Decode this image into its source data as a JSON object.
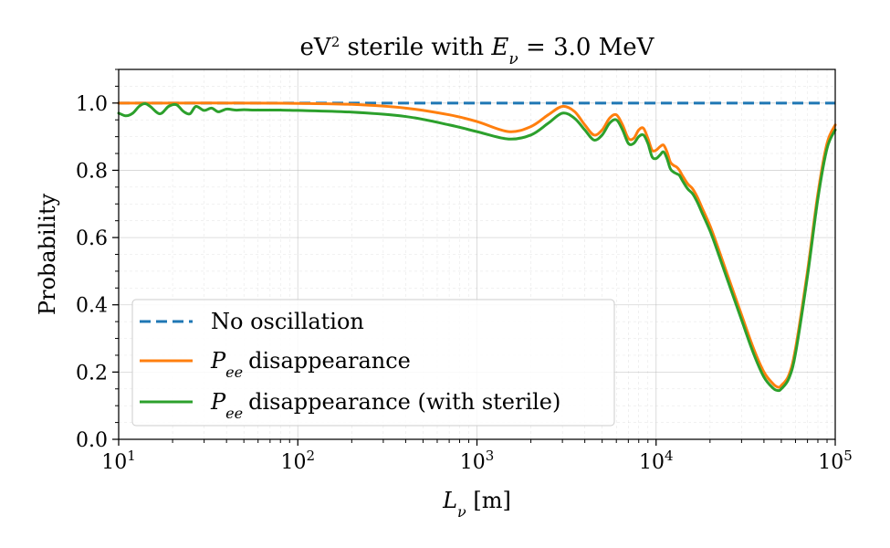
{
  "chart_data": {
    "type": "line",
    "title": {
      "prefix": "eV",
      "sup": "2",
      "middle": " sterile with ",
      "var": "E",
      "var_sub": "ν",
      "suffix": " = 3.0 MeV"
    },
    "xlabel": {
      "var": "L",
      "var_sub": "ν",
      "suffix": " [m]"
    },
    "ylabel": "Probability",
    "x_scale": "log",
    "xlim": [
      10,
      100000
    ],
    "ylim": [
      0.0,
      1.1
    ],
    "x_ticks": [
      {
        "value": 10,
        "base": "10",
        "exp": "1"
      },
      {
        "value": 100,
        "base": "10",
        "exp": "2"
      },
      {
        "value": 1000,
        "base": "10",
        "exp": "3"
      },
      {
        "value": 10000,
        "base": "10",
        "exp": "4"
      },
      {
        "value": 100000,
        "base": "10",
        "exp": "5"
      }
    ],
    "y_ticks": [
      {
        "value": 0.0,
        "label": "0.0"
      },
      {
        "value": 0.2,
        "label": "0.2"
      },
      {
        "value": 0.4,
        "label": "0.4"
      },
      {
        "value": 0.6,
        "label": "0.6"
      },
      {
        "value": 0.8,
        "label": "0.8"
      },
      {
        "value": 1.0,
        "label": "1.0"
      }
    ],
    "grid": true,
    "legend_position": "lower-left",
    "series": [
      {
        "name": "No oscillation",
        "color": "#1f77b4",
        "style": "dashed",
        "x": [
          10,
          100000
        ],
        "y": [
          1.0,
          1.0
        ]
      },
      {
        "name": "disappearance",
        "name_var": "P",
        "name_sub": "ee",
        "color": "#ff7f0e",
        "style": "solid",
        "x": [
          10,
          20,
          50,
          100,
          200,
          400,
          700,
          1000,
          1500,
          2000,
          2500,
          3000,
          3500,
          4000,
          4500,
          5000,
          5500,
          6000,
          6500,
          7000,
          7500,
          8000,
          8500,
          9000,
          9500,
          10000,
          10500,
          11000,
          11500,
          12000,
          12500,
          13000,
          13500,
          14000,
          15000,
          16000,
          17000,
          18000,
          20000,
          22000,
          25000,
          30000,
          35000,
          40000,
          45000,
          48000,
          50000,
          55000,
          60000,
          70000,
          80000,
          90000,
          100000
        ],
        "y": [
          1.0,
          1.0,
          1.0,
          0.999,
          0.996,
          0.985,
          0.965,
          0.945,
          0.915,
          0.93,
          0.965,
          0.99,
          0.975,
          0.935,
          0.905,
          0.92,
          0.955,
          0.965,
          0.935,
          0.895,
          0.895,
          0.92,
          0.925,
          0.895,
          0.86,
          0.86,
          0.87,
          0.875,
          0.855,
          0.825,
          0.815,
          0.81,
          0.8,
          0.785,
          0.76,
          0.745,
          0.72,
          0.69,
          0.635,
          0.575,
          0.49,
          0.37,
          0.27,
          0.2,
          0.165,
          0.155,
          0.16,
          0.19,
          0.27,
          0.5,
          0.73,
          0.88,
          0.935
        ]
      },
      {
        "name": "disappearance (with sterile)",
        "name_var": "P",
        "name_sub": "ee",
        "color": "#2ca02c",
        "style": "solid",
        "x": [
          10,
          11,
          12,
          13,
          14,
          15,
          17,
          19,
          21,
          23,
          25,
          27,
          30,
          33,
          36,
          40,
          45,
          50,
          60,
          80,
          100,
          200,
          400,
          700,
          1000,
          1500,
          2000,
          2500,
          3000,
          3500,
          4000,
          4500,
          5000,
          5500,
          6000,
          6500,
          7000,
          7500,
          8000,
          8500,
          9000,
          9500,
          10000,
          10500,
          11000,
          11500,
          12000,
          12500,
          13000,
          13500,
          14000,
          15000,
          16000,
          17000,
          18000,
          20000,
          22000,
          25000,
          30000,
          35000,
          40000,
          45000,
          48000,
          50000,
          55000,
          60000,
          70000,
          80000,
          90000,
          100000
        ],
        "y": [
          0.97,
          0.962,
          0.97,
          0.99,
          0.998,
          0.99,
          0.968,
          0.99,
          0.995,
          0.975,
          0.968,
          0.99,
          0.978,
          0.985,
          0.974,
          0.982,
          0.979,
          0.98,
          0.979,
          0.979,
          0.978,
          0.973,
          0.96,
          0.935,
          0.915,
          0.893,
          0.905,
          0.94,
          0.97,
          0.955,
          0.92,
          0.89,
          0.905,
          0.94,
          0.95,
          0.92,
          0.88,
          0.88,
          0.9,
          0.905,
          0.88,
          0.84,
          0.835,
          0.845,
          0.855,
          0.835,
          0.805,
          0.795,
          0.79,
          0.785,
          0.77,
          0.745,
          0.73,
          0.705,
          0.675,
          0.62,
          0.56,
          0.475,
          0.355,
          0.255,
          0.185,
          0.152,
          0.145,
          0.15,
          0.18,
          0.255,
          0.485,
          0.715,
          0.865,
          0.92
        ]
      }
    ]
  }
}
